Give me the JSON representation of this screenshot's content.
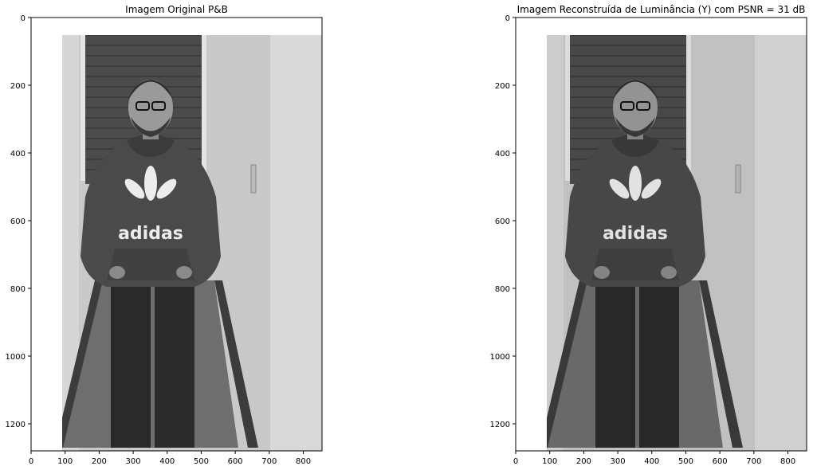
{
  "figures": [
    {
      "title": "Imagem Original P&B",
      "logo_text": "adidas",
      "x_ticks": [
        "0",
        "100",
        "200",
        "300",
        "400",
        "500",
        "600",
        "700",
        "800"
      ],
      "y_ticks": [
        "0",
        "200",
        "400",
        "600",
        "800",
        "1000",
        "1200"
      ],
      "image_width": 855,
      "image_height": 1280
    },
    {
      "title": "Imagem Reconstruída de Luminância (Y) com PSNR = 31 dB",
      "logo_text": "adidas",
      "x_ticks": [
        "0",
        "100",
        "200",
        "300",
        "400",
        "500",
        "600",
        "700",
        "800"
      ],
      "y_ticks": [
        "0",
        "200",
        "400",
        "600",
        "800",
        "1000",
        "1200"
      ],
      "image_width": 855,
      "image_height": 1280
    }
  ]
}
